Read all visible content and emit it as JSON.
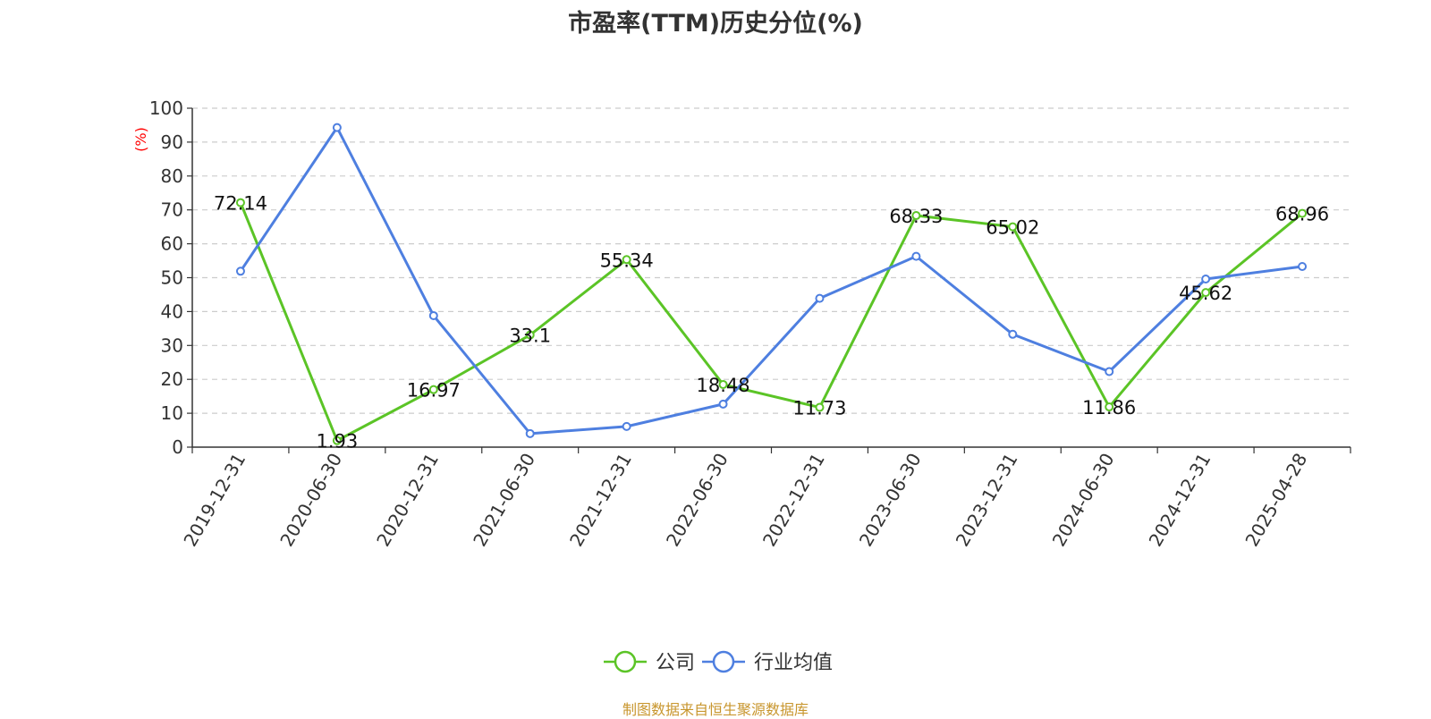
{
  "chart_data": {
    "type": "line",
    "title": "市盈率(TTM)历史分位(%)",
    "ylabel": "(%)",
    "xlabel": "",
    "ylim": [
      0,
      100
    ],
    "yticks": [
      0,
      10,
      20,
      30,
      40,
      50,
      60,
      70,
      80,
      90,
      100
    ],
    "grid": true,
    "legend_position": "bottom-center",
    "categories": [
      "2019-12-31",
      "2020-06-30",
      "2020-12-31",
      "2021-06-30",
      "2021-12-31",
      "2022-06-30",
      "2022-12-31",
      "2023-06-30",
      "2023-12-31",
      "2024-06-30",
      "2024-12-31",
      "2025-04-28"
    ],
    "series": [
      {
        "name": "公司",
        "color": "#5bc426",
        "values": [
          72.14,
          1.93,
          16.97,
          33.1,
          55.34,
          18.48,
          11.73,
          68.33,
          65.02,
          11.86,
          45.62,
          68.96
        ],
        "data_labels": [
          "72.14",
          "1.93",
          "16.97",
          "33.1",
          "55.34",
          "18.48",
          "11.73",
          "68.33",
          "65.02",
          "11.86",
          "45.62",
          "68.96"
        ]
      },
      {
        "name": "行业均值",
        "color": "#4e7fe0",
        "values": [
          51.9,
          94.3,
          38.8,
          4.0,
          6.1,
          12.7,
          43.9,
          56.3,
          33.3,
          22.3,
          49.6,
          53.3
        ]
      }
    ],
    "colors": {
      "axis": "#333333",
      "grid": "#cccccc",
      "ylabel": "#ff0000",
      "tick_label": "#333333",
      "data_label": "#111111"
    }
  },
  "footer": {
    "source_text": "制图数据来自恒生聚源数据库"
  }
}
